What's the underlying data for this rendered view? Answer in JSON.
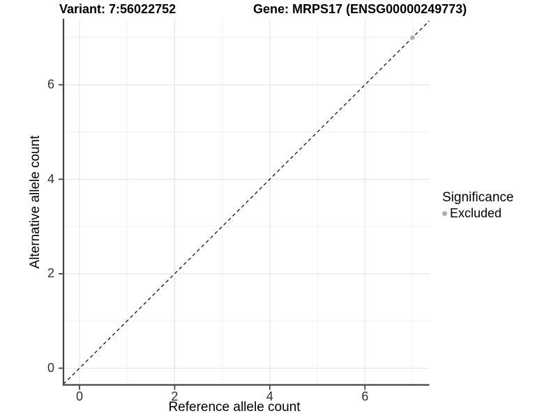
{
  "titles": {
    "variant": "Variant: 7:56022752",
    "gene": "Gene: MRPS17 (ENSG00000249773)"
  },
  "chart_data": {
    "type": "scatter",
    "xlabel": "Reference allele count",
    "ylabel": "Alternative allele count",
    "xlim": [
      -0.337,
      7.353
    ],
    "ylim": [
      -0.354,
      7.382
    ],
    "x_major_ticks": [
      0,
      2,
      4,
      6
    ],
    "x_minor_gridlines": [
      1,
      3,
      5,
      7
    ],
    "y_major_ticks": [
      0,
      2,
      4,
      6
    ],
    "y_minor_gridlines": [
      1,
      3,
      5,
      7
    ],
    "grid": "major-and-minor",
    "reference_line": {
      "type": "identity",
      "slope": 1,
      "intercept": 0,
      "style": "dashed",
      "color": "#111111"
    },
    "series": [
      {
        "name": "Excluded",
        "color": "#aeaeae",
        "points": [
          {
            "x": 7,
            "y": 7
          }
        ]
      }
    ],
    "legend": {
      "title": "Significance",
      "position": "right",
      "entries": [
        {
          "label": "Excluded",
          "color": "#aeaeae",
          "marker": "circle"
        }
      ]
    }
  },
  "style_colors": {
    "major_grid": "#e3e3e3",
    "minor_grid": "#f0f0f0",
    "axis_line": "#444444",
    "tick_mark": "#444444",
    "panel_background": "#ffffff"
  }
}
